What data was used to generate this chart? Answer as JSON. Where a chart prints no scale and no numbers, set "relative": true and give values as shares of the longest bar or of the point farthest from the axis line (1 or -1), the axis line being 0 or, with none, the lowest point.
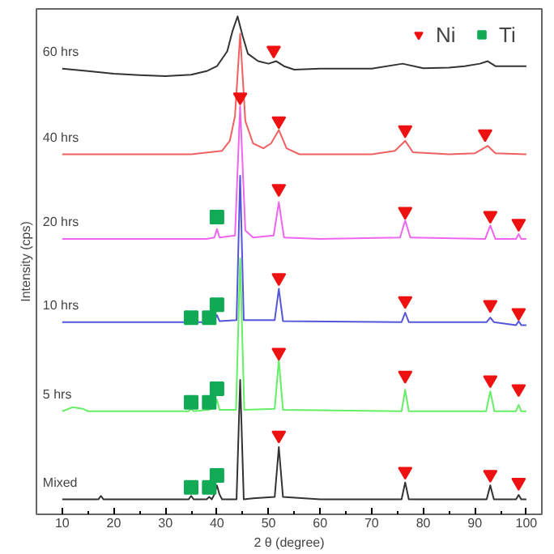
{
  "chart_data": {
    "type": "line",
    "relative": true,
    "xlabel": "2 θ (degree)",
    "ylabel": "Intensity (cps)",
    "xlim": [
      5,
      103
    ],
    "xticks": [
      10,
      20,
      30,
      40,
      50,
      60,
      70,
      80,
      90,
      100
    ],
    "grid": false,
    "legend": "top right",
    "line_style": "solid",
    "series": [
      {
        "name": "Mixed",
        "color": "#333333",
        "x": [
          10,
          17,
          17.5,
          18,
          25,
          34.5,
          35,
          35.5,
          38,
          38.5,
          39,
          39.5,
          40,
          40.5,
          41,
          43.8,
          44.5,
          45.2,
          47,
          51.2,
          52,
          52.8,
          60,
          75.8,
          76.5,
          77.2,
          92.3,
          93,
          93.7,
          98,
          98.5,
          99,
          100
        ],
        "values": [
          0.03,
          0.03,
          0.037,
          0.03,
          0.03,
          0.03,
          0.037,
          0.03,
          0.03,
          0.035,
          0.03,
          0.04,
          0.058,
          0.04,
          0.03,
          0.03,
          0.27,
          0.03,
          0.032,
          0.035,
          0.135,
          0.035,
          0.03,
          0.03,
          0.064,
          0.03,
          0.03,
          0.058,
          0.03,
          0.03,
          0.039,
          0.03,
          0.03
        ]
      },
      {
        "name": "5 hrs",
        "color": "#66ee66",
        "x": [
          10,
          12,
          14,
          15,
          20,
          34.5,
          35,
          35.5,
          38.5,
          39.5,
          40,
          40.5,
          43.7,
          44.5,
          45.3,
          51.2,
          52,
          52.8,
          75.8,
          76.5,
          77.2,
          92.2,
          93,
          93.8,
          98,
          98.5,
          99,
          100
        ],
        "values": [
          0.207,
          0.215,
          0.212,
          0.207,
          0.207,
          0.207,
          0.212,
          0.207,
          0.21,
          0.215,
          0.23,
          0.21,
          0.21,
          0.514,
          0.21,
          0.212,
          0.31,
          0.21,
          0.207,
          0.25,
          0.207,
          0.207,
          0.247,
          0.207,
          0.207,
          0.22,
          0.207,
          0.207
        ]
      },
      {
        "name": "10 hrs",
        "color": "#5555dd",
        "x": [
          10,
          34.5,
          35,
          35.5,
          38,
          38.5,
          39,
          39.5,
          40,
          40.5,
          43.8,
          44.5,
          45.2,
          51.2,
          52,
          52.8,
          75.8,
          76.5,
          77.2,
          92.3,
          93,
          93.7,
          98,
          98.5,
          99,
          100
        ],
        "values": [
          0.386,
          0.386,
          0.39,
          0.386,
          0.386,
          0.39,
          0.386,
          0.39,
          0.4,
          0.388,
          0.39,
          0.68,
          0.39,
          0.39,
          0.453,
          0.388,
          0.386,
          0.405,
          0.386,
          0.386,
          0.395,
          0.386,
          0.38,
          0.388,
          0.38,
          0.38
        ]
      },
      {
        "name": "20 hrs",
        "color": "#ee66ee",
        "x": [
          10,
          38,
          39.5,
          40,
          40.5,
          43.5,
          44.5,
          45.5,
          47,
          51,
          52,
          53,
          60,
          75.5,
          76.5,
          77.5,
          92,
          93,
          94,
          98,
          98.5,
          99,
          100
        ],
        "values": [
          0.553,
          0.553,
          0.556,
          0.573,
          0.556,
          0.56,
          0.82,
          0.57,
          0.556,
          0.56,
          0.627,
          0.556,
          0.553,
          0.556,
          0.59,
          0.556,
          0.553,
          0.58,
          0.553,
          0.553,
          0.563,
          0.553,
          0.553
        ]
      },
      {
        "name": "40 hrs",
        "color": "#f06060",
        "x": [
          10,
          35,
          41,
          42.5,
          43.5,
          44.5,
          45.5,
          47,
          49,
          50.5,
          52,
          53.5,
          56,
          70,
          74.5,
          76.5,
          78,
          85,
          90,
          92.5,
          94,
          100
        ],
        "values": [
          0.723,
          0.723,
          0.73,
          0.75,
          0.8,
          0.965,
          0.79,
          0.745,
          0.735,
          0.745,
          0.772,
          0.735,
          0.723,
          0.723,
          0.73,
          0.75,
          0.727,
          0.723,
          0.725,
          0.74,
          0.725,
          0.723
        ]
      },
      {
        "name": "60 hrs",
        "color": "#333333",
        "x": [
          10,
          15,
          20,
          25,
          30,
          35,
          38,
          40,
          42,
          43,
          44,
          45,
          46,
          48,
          50,
          51.5,
          53,
          55,
          60,
          70,
          76,
          80,
          85,
          88,
          91,
          92.5,
          94,
          100
        ],
        "values": [
          0.895,
          0.89,
          0.885,
          0.882,
          0.88,
          0.883,
          0.89,
          0.9,
          0.93,
          0.97,
          1.0,
          0.96,
          0.925,
          0.91,
          0.905,
          0.91,
          0.9,
          0.893,
          0.895,
          0.895,
          0.905,
          0.896,
          0.897,
          0.9,
          0.905,
          0.91,
          0.9,
          0.9
        ]
      },
      {
        "name": "Ni",
        "type": "scatter",
        "marker": "triangle",
        "color": "#ee1111",
        "x": [
          51,
          44.5,
          52,
          76.5,
          92,
          52,
          76.5,
          93,
          98.5,
          52,
          76.5,
          93,
          98.5,
          52,
          76.5,
          93,
          98.5,
          52,
          76.5,
          93,
          98.5
        ],
        "values": [
          0.932,
          0.838,
          0.79,
          0.772,
          0.764,
          0.654,
          0.608,
          0.6,
          0.584,
          0.475,
          0.429,
          0.421,
          0.405,
          0.325,
          0.279,
          0.27,
          0.252,
          0.159,
          0.086,
          0.08,
          0.064
        ]
      },
      {
        "name": "Ti",
        "type": "scatter",
        "marker": "square",
        "color": "#11aa55",
        "x": [
          40,
          35,
          38.5,
          40,
          35,
          38.5,
          40,
          35,
          38.5,
          40
        ],
        "values": [
          0.597,
          0.395,
          0.395,
          0.421,
          0.225,
          0.225,
          0.252,
          0.054,
          0.054,
          0.078
        ]
      }
    ]
  }
}
